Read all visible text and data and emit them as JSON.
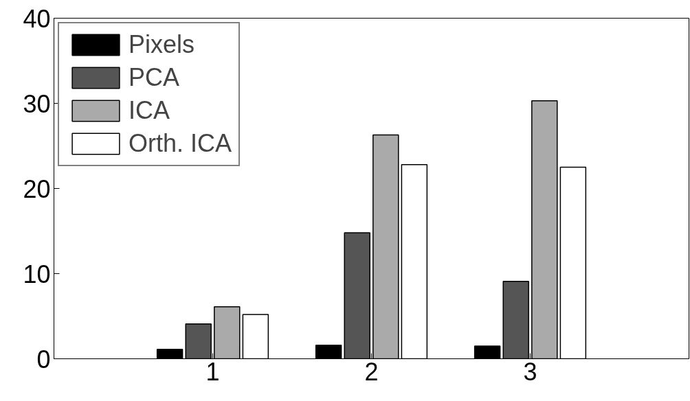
{
  "chart_data": {
    "type": "bar",
    "x": [
      1,
      2,
      3
    ],
    "xlim": [
      0,
      4
    ],
    "xticks": [
      1,
      2,
      3
    ],
    "ylim": [
      0,
      40
    ],
    "yticks": [
      0,
      10,
      20,
      30,
      40
    ],
    "grid": false,
    "legend": "top left",
    "series": [
      {
        "name": "Pixels",
        "color": "#000000",
        "values": [
          1.1,
          1.6,
          1.5
        ]
      },
      {
        "name": "PCA",
        "color": "#555555",
        "values": [
          4.1,
          14.8,
          9.1
        ]
      },
      {
        "name": "ICA",
        "color": "#aaaaaa",
        "values": [
          6.1,
          26.3,
          30.3
        ]
      },
      {
        "name": "Orth. ICA",
        "color": "#ffffff",
        "values": [
          5.2,
          22.8,
          22.5
        ]
      }
    ]
  }
}
